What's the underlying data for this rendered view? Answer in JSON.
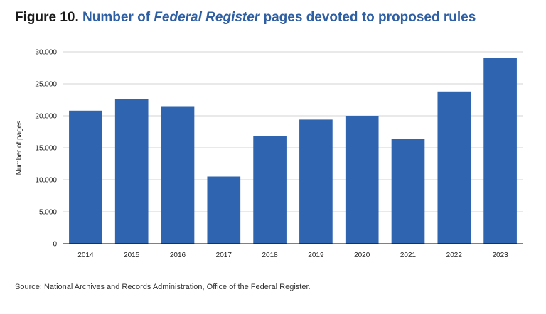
{
  "title": {
    "figure_label": "Figure 10.",
    "text_before": "Number of ",
    "text_italic": "Federal Register",
    "text_after": " pages devoted to proposed rules"
  },
  "source": "Source: National Archives and Records Administration, Office of the Federal Register.",
  "colors": {
    "bar": "#2f64b0",
    "grid": "#d3d3d3",
    "axis": "#000000",
    "title_accent": "#2f5fa3"
  },
  "chart_data": {
    "type": "bar",
    "categories": [
      "2014",
      "2015",
      "2016",
      "2017",
      "2018",
      "2019",
      "2020",
      "2021",
      "2022",
      "2023"
    ],
    "values": [
      20800,
      22600,
      21500,
      10500,
      16800,
      19400,
      20000,
      16400,
      23800,
      29000
    ],
    "ylabel": "Number of pages",
    "xlabel": "",
    "ylim": [
      0,
      30000
    ],
    "yticks": [
      0,
      5000,
      10000,
      15000,
      20000,
      25000,
      30000
    ],
    "ytick_labels": [
      "0",
      "5,000",
      "10,000",
      "15,000",
      "20,000",
      "25,000",
      "30,000"
    ],
    "grid": true,
    "legend": "none"
  }
}
